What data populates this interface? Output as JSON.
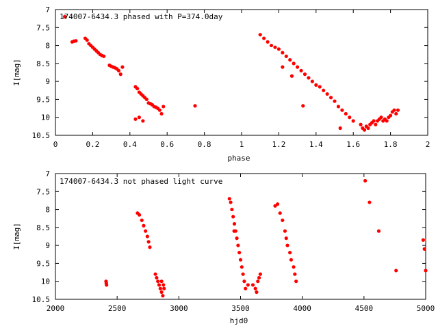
{
  "chart_data": [
    {
      "type": "scatter",
      "title": "174007-6434.3 phased with P=374.0day",
      "xlabel": "phase",
      "ylabel": "I[mag]",
      "xlim": [
        0,
        2
      ],
      "ylim": [
        10.5,
        7
      ],
      "y_inverted": true,
      "grid": false,
      "color": "#ff0000",
      "xticks": [
        "0",
        "0.2",
        "0.4",
        "0.6",
        "0.8",
        "1",
        "1.2",
        "1.4",
        "1.6",
        "1.8",
        "2"
      ],
      "xtick_values": [
        0,
        0.2,
        0.4,
        0.6,
        0.8,
        1,
        1.2,
        1.4,
        1.6,
        1.8,
        2
      ],
      "yticks": [
        "7",
        "7.5",
        "8",
        "8.5",
        "9",
        "9.5",
        "10",
        "10.5"
      ],
      "ytick_values": [
        7,
        7.5,
        8,
        8.5,
        9,
        9.5,
        10,
        10.5
      ],
      "points": [
        [
          0.05,
          7.2
        ],
        [
          0.09,
          7.9
        ],
        [
          0.1,
          7.88
        ],
        [
          0.11,
          7.87
        ],
        [
          0.16,
          7.8
        ],
        [
          0.17,
          7.85
        ],
        [
          0.18,
          7.95
        ],
        [
          0.19,
          8.0
        ],
        [
          0.2,
          8.05
        ],
        [
          0.21,
          8.1
        ],
        [
          0.22,
          8.15
        ],
        [
          0.23,
          8.2
        ],
        [
          0.24,
          8.25
        ],
        [
          0.25,
          8.28
        ],
        [
          0.26,
          8.3
        ],
        [
          0.29,
          8.55
        ],
        [
          0.3,
          8.58
        ],
        [
          0.31,
          8.6
        ],
        [
          0.32,
          8.62
        ],
        [
          0.33,
          8.65
        ],
        [
          0.34,
          8.7
        ],
        [
          0.35,
          8.8
        ],
        [
          0.36,
          8.6
        ],
        [
          0.43,
          9.15
        ],
        [
          0.44,
          9.2
        ],
        [
          0.45,
          9.3
        ],
        [
          0.46,
          9.35
        ],
        [
          0.47,
          9.4
        ],
        [
          0.48,
          9.45
        ],
        [
          0.49,
          9.5
        ],
        [
          0.5,
          9.6
        ],
        [
          0.51,
          9.62
        ],
        [
          0.52,
          9.65
        ],
        [
          0.53,
          9.7
        ],
        [
          0.54,
          9.72
        ],
        [
          0.55,
          9.75
        ],
        [
          0.56,
          9.8
        ],
        [
          0.57,
          9.9
        ],
        [
          0.58,
          9.7
        ],
        [
          0.43,
          10.05
        ],
        [
          0.45,
          10.0
        ],
        [
          0.47,
          10.1
        ],
        [
          0.75,
          9.68
        ],
        [
          1.1,
          7.7
        ],
        [
          1.12,
          7.8
        ],
        [
          1.14,
          7.9
        ],
        [
          1.16,
          8.0
        ],
        [
          1.18,
          8.05
        ],
        [
          1.2,
          8.1
        ],
        [
          1.22,
          8.2
        ],
        [
          1.24,
          8.3
        ],
        [
          1.26,
          8.4
        ],
        [
          1.28,
          8.5
        ],
        [
          1.3,
          8.6
        ],
        [
          1.32,
          8.7
        ],
        [
          1.34,
          8.8
        ],
        [
          1.36,
          8.9
        ],
        [
          1.38,
          9.0
        ],
        [
          1.4,
          9.1
        ],
        [
          1.42,
          9.15
        ],
        [
          1.44,
          9.25
        ],
        [
          1.46,
          9.35
        ],
        [
          1.48,
          9.45
        ],
        [
          1.5,
          9.55
        ],
        [
          1.52,
          9.7
        ],
        [
          1.54,
          9.8
        ],
        [
          1.56,
          9.9
        ],
        [
          1.58,
          10.0
        ],
        [
          1.6,
          10.1
        ],
        [
          1.22,
          8.6
        ],
        [
          1.27,
          8.85
        ],
        [
          1.33,
          9.68
        ],
        [
          1.53,
          10.3
        ],
        [
          1.64,
          10.2
        ],
        [
          1.65,
          10.3
        ],
        [
          1.66,
          10.35
        ],
        [
          1.67,
          10.25
        ],
        [
          1.68,
          10.3
        ],
        [
          1.69,
          10.2
        ],
        [
          1.7,
          10.15
        ],
        [
          1.71,
          10.1
        ],
        [
          1.72,
          10.2
        ],
        [
          1.73,
          10.1
        ],
        [
          1.74,
          10.05
        ],
        [
          1.75,
          10.0
        ],
        [
          1.76,
          10.1
        ],
        [
          1.77,
          10.05
        ],
        [
          1.78,
          10.1
        ],
        [
          1.79,
          10.0
        ],
        [
          1.8,
          9.95
        ],
        [
          1.81,
          9.85
        ],
        [
          1.82,
          9.8
        ],
        [
          1.83,
          9.9
        ],
        [
          1.84,
          9.8
        ]
      ]
    },
    {
      "type": "scatter",
      "title": "174007-6434.3 not phased light curve",
      "xlabel": "hjd0",
      "ylabel": "I[mag]",
      "xlim": [
        2000,
        5000
      ],
      "ylim": [
        10.5,
        7
      ],
      "y_inverted": true,
      "grid": false,
      "color": "#ff0000",
      "xticks": [
        "2000",
        "2500",
        "3000",
        "3500",
        "4000",
        "4500",
        "5000"
      ],
      "xtick_values": [
        2000,
        2500,
        3000,
        3500,
        4000,
        4500,
        5000
      ],
      "yticks": [
        "7",
        "7.5",
        "8",
        "8.5",
        "9",
        "9.5",
        "10",
        "10.5"
      ],
      "ytick_values": [
        7,
        7.5,
        8,
        8.5,
        9,
        9.5,
        10,
        10.5
      ],
      "points": [
        [
          2410,
          10.0
        ],
        [
          2412,
          10.05
        ],
        [
          2414,
          10.1
        ],
        [
          2665,
          8.1
        ],
        [
          2680,
          8.15
        ],
        [
          2700,
          8.3
        ],
        [
          2715,
          8.45
        ],
        [
          2730,
          8.6
        ],
        [
          2745,
          8.75
        ],
        [
          2755,
          8.9
        ],
        [
          2765,
          9.05
        ],
        [
          2810,
          9.8
        ],
        [
          2820,
          9.9
        ],
        [
          2830,
          10.0
        ],
        [
          2840,
          10.1
        ],
        [
          2850,
          10.2
        ],
        [
          2860,
          10.3
        ],
        [
          2870,
          10.4
        ],
        [
          2880,
          10.2
        ],
        [
          2860,
          10.0
        ],
        [
          2875,
          10.1
        ],
        [
          3410,
          7.7
        ],
        [
          3420,
          7.8
        ],
        [
          3430,
          8.0
        ],
        [
          3440,
          8.2
        ],
        [
          3450,
          8.4
        ],
        [
          3460,
          8.6
        ],
        [
          3470,
          8.8
        ],
        [
          3480,
          9.0
        ],
        [
          3490,
          9.2
        ],
        [
          3500,
          9.4
        ],
        [
          3510,
          9.6
        ],
        [
          3520,
          9.8
        ],
        [
          3530,
          10.0
        ],
        [
          3540,
          10.2
        ],
        [
          3448,
          8.6
        ],
        [
          3560,
          10.1
        ],
        [
          3600,
          10.1
        ],
        [
          3620,
          10.2
        ],
        [
          3630,
          10.3
        ],
        [
          3640,
          10.0
        ],
        [
          3650,
          9.9
        ],
        [
          3660,
          9.8
        ],
        [
          3780,
          7.9
        ],
        [
          3800,
          7.85
        ],
        [
          3820,
          8.1
        ],
        [
          3840,
          8.3
        ],
        [
          3860,
          8.6
        ],
        [
          3870,
          8.8
        ],
        [
          3880,
          9.0
        ],
        [
          3900,
          9.2
        ],
        [
          3910,
          9.4
        ],
        [
          3930,
          9.6
        ],
        [
          3940,
          9.8
        ],
        [
          3950,
          10.0
        ],
        [
          4510,
          7.2
        ],
        [
          4545,
          7.8
        ],
        [
          4620,
          8.6
        ],
        [
          4760,
          9.7
        ],
        [
          4980,
          8.85
        ],
        [
          4990,
          9.1
        ],
        [
          5000,
          9.7
        ]
      ]
    }
  ]
}
